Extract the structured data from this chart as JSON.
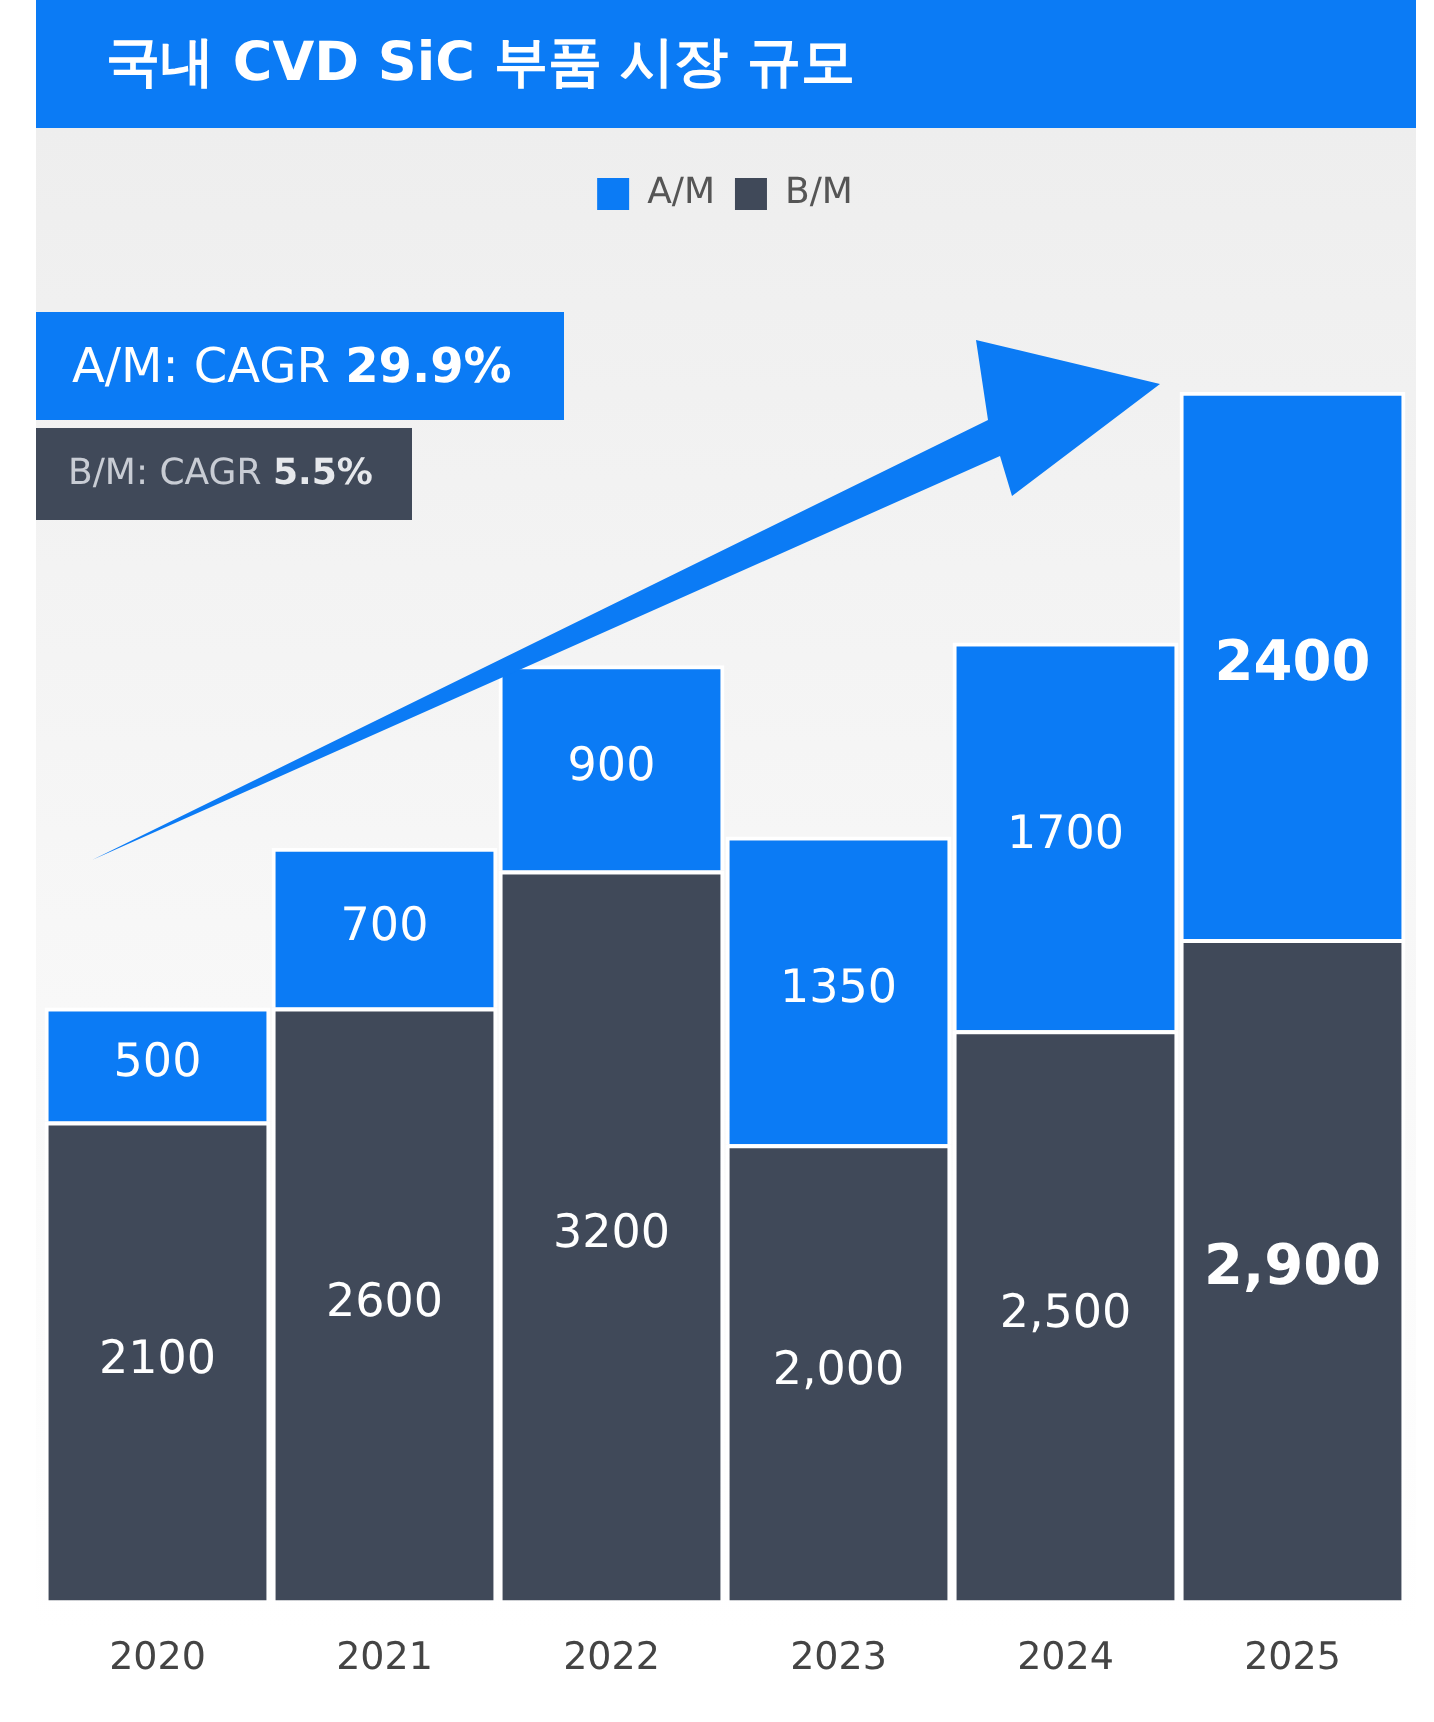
{
  "chart_data": {
    "type": "bar",
    "title": "국내 CVD SiC 부품 시장 규모",
    "stacked": true,
    "legend": "top",
    "grid": false,
    "categories": [
      "2020",
      "2021",
      "2022",
      "2023",
      "2024",
      "2025"
    ],
    "series": [
      {
        "name": "B/M",
        "color": "#404959",
        "values": [
          2100,
          2600,
          3200,
          2000,
          2500,
          2900
        ],
        "value_labels": [
          "2100",
          "2600",
          "3200",
          "2,000",
          "2,500",
          "2,900"
        ]
      },
      {
        "name": "A/M",
        "color": "#0b7bf5",
        "values": [
          500,
          700,
          900,
          1350,
          1700,
          2400
        ],
        "value_labels": [
          "500",
          "700",
          "900",
          "1350",
          "1700",
          "2400"
        ]
      }
    ],
    "annotations": [
      "A/M: CAGR 29.9%",
      "B/M: CAGR 5.5%"
    ]
  }
}
